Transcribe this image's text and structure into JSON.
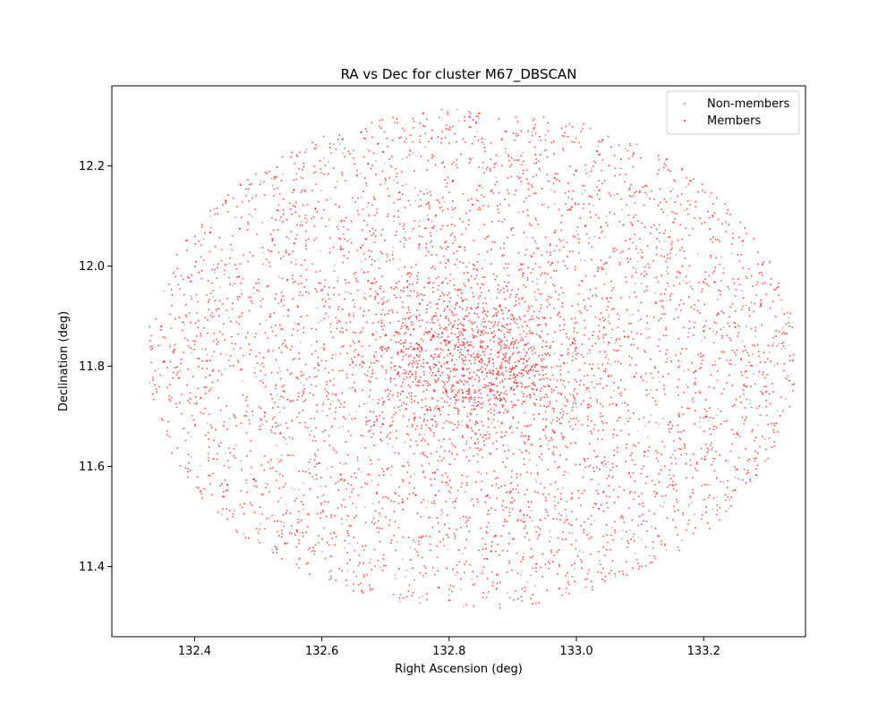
{
  "chart_data": {
    "type": "scatter",
    "title": "RA vs Dec for cluster M67_DBSCAN",
    "xlabel": "Right Ascension (deg)",
    "ylabel": "Declination (deg)",
    "xlim": [
      132.27,
      133.36
    ],
    "ylim": [
      11.26,
      12.36
    ],
    "x_ticks": [
      "132.4",
      "132.6",
      "132.8",
      "133.0",
      "133.2"
    ],
    "y_ticks": [
      "11.4",
      "11.6",
      "11.8",
      "12.0",
      "12.2"
    ],
    "legend_position": "top-right",
    "grid": false,
    "field": {
      "center_ra": 132.835,
      "center_dec": 11.815,
      "radius_ra_deg": 0.51,
      "radius_dec_deg": 0.5
    },
    "cluster_core": {
      "ra": 132.84,
      "dec": 11.81
    },
    "series": [
      {
        "name": "Non-members",
        "color": "#808080",
        "marker": "dot",
        "approx_count": 700,
        "distribution": "uniform over circular field"
      },
      {
        "name": "Members",
        "color": "#ff0000",
        "marker": "dot",
        "approx_count": 5200,
        "distribution": "uniform over circular field with central concentration"
      }
    ]
  }
}
